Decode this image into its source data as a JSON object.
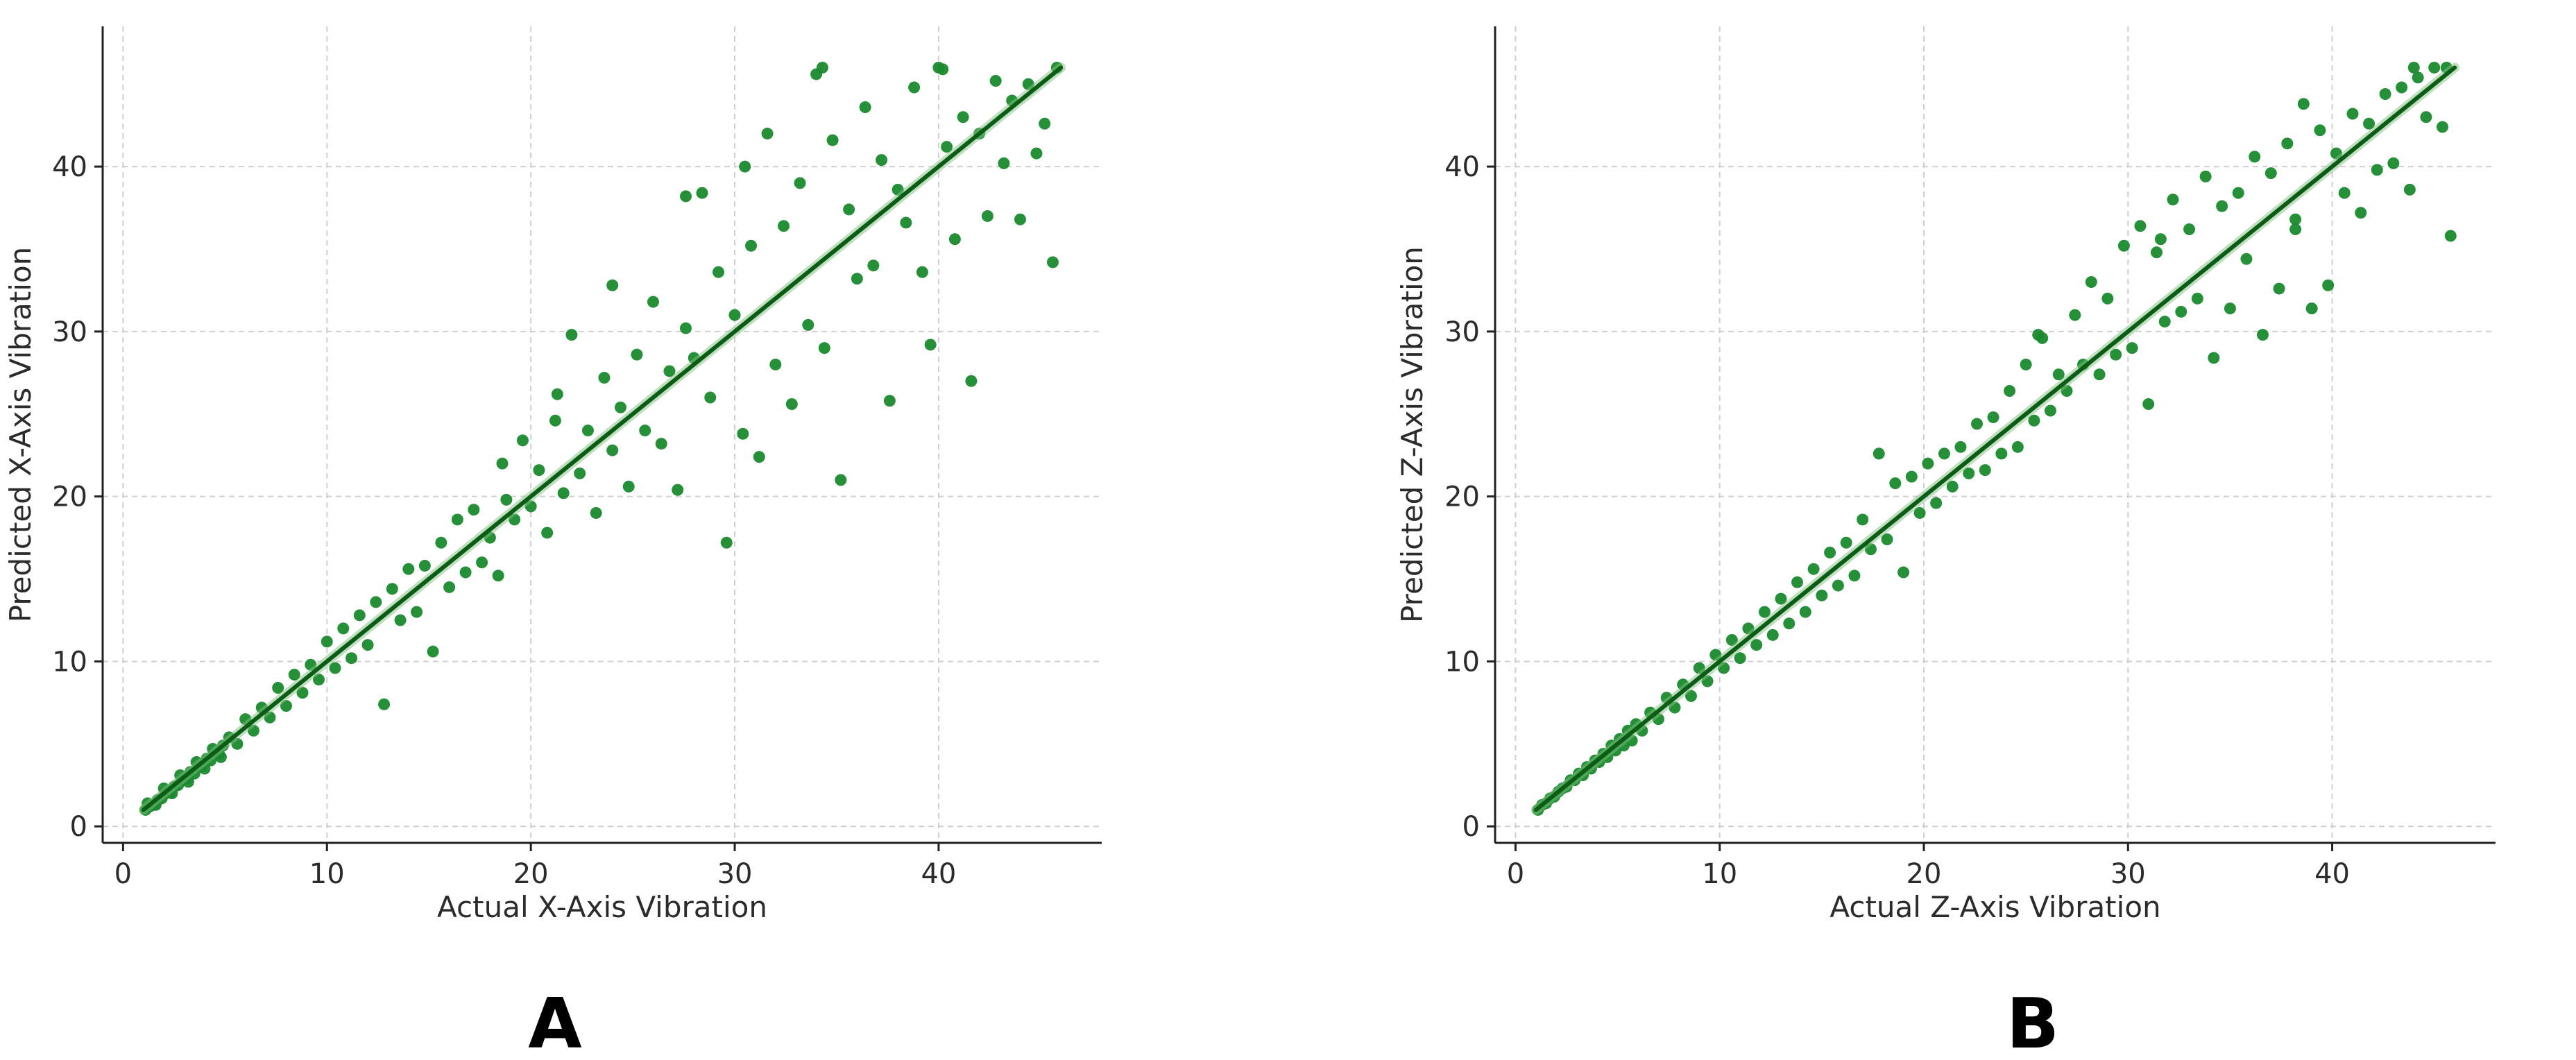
{
  "chart_data": [
    {
      "type": "scatter",
      "panel_label": "A",
      "xlabel": "Actual X-Axis Vibration",
      "ylabel": "Predicted X-Axis Vibration",
      "xlim": [
        -1,
        48
      ],
      "ylim": [
        -1,
        48.5
      ],
      "xticks": [
        0,
        10,
        20,
        30,
        40
      ],
      "yticks": [
        0,
        10,
        20,
        30,
        40
      ],
      "grid": true,
      "marker_color": "#1a8a2e",
      "line_color": "#0b5d16",
      "fit_line": [
        [
          1,
          1
        ],
        [
          46,
          46
        ]
      ],
      "points": [
        [
          1.1,
          1.0
        ],
        [
          1.3,
          1.2
        ],
        [
          1.5,
          1.3
        ],
        [
          1.7,
          1.6
        ],
        [
          1.9,
          1.7
        ],
        [
          2.1,
          2.0
        ],
        [
          2.3,
          2.1
        ],
        [
          2.5,
          2.4
        ],
        [
          2.7,
          2.5
        ],
        [
          2.9,
          2.8
        ],
        [
          3.1,
          2.9
        ],
        [
          3.3,
          3.3
        ],
        [
          3.5,
          3.2
        ],
        [
          3.7,
          3.6
        ],
        [
          3.9,
          3.7
        ],
        [
          4.1,
          4.1
        ],
        [
          4.3,
          4.0
        ],
        [
          4.5,
          4.5
        ],
        [
          4.7,
          4.4
        ],
        [
          4.9,
          4.9
        ],
        [
          1.2,
          1.4
        ],
        [
          1.6,
          1.3
        ],
        [
          2.0,
          2.3
        ],
        [
          2.4,
          2.0
        ],
        [
          2.8,
          3.1
        ],
        [
          3.2,
          2.7
        ],
        [
          3.6,
          3.9
        ],
        [
          4.0,
          3.5
        ],
        [
          4.4,
          4.7
        ],
        [
          4.8,
          4.2
        ],
        [
          5.2,
          5.4
        ],
        [
          5.6,
          5.0
        ],
        [
          6.0,
          6.5
        ],
        [
          6.4,
          5.8
        ],
        [
          6.8,
          7.2
        ],
        [
          7.2,
          6.6
        ],
        [
          7.6,
          8.4
        ],
        [
          8.0,
          7.3
        ],
        [
          8.4,
          9.2
        ],
        [
          8.8,
          8.1
        ],
        [
          9.2,
          9.8
        ],
        [
          9.6,
          8.9
        ],
        [
          10.0,
          11.2
        ],
        [
          10.4,
          9.6
        ],
        [
          10.8,
          12.0
        ],
        [
          11.2,
          10.2
        ],
        [
          11.6,
          12.8
        ],
        [
          12.0,
          11.0
        ],
        [
          12.4,
          13.6
        ],
        [
          12.8,
          7.4
        ],
        [
          13.2,
          14.4
        ],
        [
          13.6,
          12.5
        ],
        [
          14.0,
          15.6
        ],
        [
          14.4,
          13.0
        ],
        [
          14.8,
          15.8
        ],
        [
          15.2,
          10.6
        ],
        [
          15.6,
          17.2
        ],
        [
          16.0,
          14.5
        ],
        [
          16.4,
          18.6
        ],
        [
          16.8,
          15.4
        ],
        [
          17.2,
          19.2
        ],
        [
          17.6,
          16.0
        ],
        [
          18.0,
          17.5
        ],
        [
          18.4,
          15.2
        ],
        [
          18.8,
          19.8
        ],
        [
          19.2,
          18.6
        ],
        [
          19.6,
          23.4
        ],
        [
          20.0,
          19.4
        ],
        [
          20.4,
          21.6
        ],
        [
          20.8,
          17.8
        ],
        [
          21.2,
          24.6
        ],
        [
          21.6,
          20.2
        ],
        [
          22.0,
          29.8
        ],
        [
          22.4,
          21.4
        ],
        [
          22.8,
          24.0
        ],
        [
          23.2,
          19.0
        ],
        [
          23.6,
          27.2
        ],
        [
          24.0,
          22.8
        ],
        [
          24.4,
          25.4
        ],
        [
          24.8,
          20.6
        ],
        [
          25.2,
          28.6
        ],
        [
          25.6,
          24.0
        ],
        [
          26.0,
          31.8
        ],
        [
          26.4,
          23.2
        ],
        [
          26.8,
          27.6
        ],
        [
          27.2,
          20.4
        ],
        [
          27.6,
          30.2
        ],
        [
          28.0,
          28.4
        ],
        [
          28.4,
          38.4
        ],
        [
          28.8,
          26.0
        ],
        [
          29.2,
          33.6
        ],
        [
          29.6,
          17.2
        ],
        [
          30.0,
          31.0
        ],
        [
          30.4,
          23.8
        ],
        [
          30.8,
          35.2
        ],
        [
          31.2,
          22.4
        ],
        [
          31.6,
          42.0
        ],
        [
          32.0,
          28.0
        ],
        [
          32.4,
          36.4
        ],
        [
          32.8,
          25.6
        ],
        [
          33.2,
          39.0
        ],
        [
          33.6,
          30.4
        ],
        [
          34.0,
          45.6
        ],
        [
          34.4,
          29.0
        ],
        [
          34.8,
          41.6
        ],
        [
          35.2,
          21.0
        ],
        [
          35.6,
          37.4
        ],
        [
          36.0,
          33.2
        ],
        [
          36.4,
          43.6
        ],
        [
          36.8,
          34.0
        ],
        [
          37.2,
          40.4
        ],
        [
          37.6,
          25.8
        ],
        [
          38.0,
          38.6
        ],
        [
          38.4,
          36.6
        ],
        [
          38.8,
          44.8
        ],
        [
          39.2,
          33.6
        ],
        [
          39.6,
          29.2
        ],
        [
          40.0,
          46.0
        ],
        [
          40.4,
          41.2
        ],
        [
          40.8,
          35.6
        ],
        [
          41.2,
          43.0
        ],
        [
          41.6,
          27.0
        ],
        [
          42.0,
          42.0
        ],
        [
          42.4,
          37.0
        ],
        [
          42.8,
          45.2
        ],
        [
          43.2,
          40.2
        ],
        [
          43.6,
          44.0
        ],
        [
          44.0,
          36.8
        ],
        [
          44.4,
          45.0
        ],
        [
          44.8,
          40.8
        ],
        [
          45.2,
          42.6
        ],
        [
          45.6,
          34.2
        ],
        [
          45.8,
          46.0
        ],
        [
          34.3,
          46.0
        ],
        [
          40.2,
          45.9
        ],
        [
          30.5,
          40.0
        ],
        [
          27.6,
          38.2
        ],
        [
          24.0,
          32.8
        ],
        [
          18.6,
          22.0
        ],
        [
          21.3,
          26.2
        ]
      ]
    },
    {
      "type": "scatter",
      "panel_label": "B",
      "xlabel": "Actual Z-Axis Vibration",
      "ylabel": "Predicted Z-Axis Vibration",
      "xlim": [
        -1,
        48
      ],
      "ylim": [
        -1,
        48.5
      ],
      "xticks": [
        0,
        10,
        20,
        30,
        40
      ],
      "yticks": [
        0,
        10,
        20,
        30,
        40
      ],
      "grid": true,
      "marker_color": "#1a8a2e",
      "line_color": "#0b5d16",
      "fit_line": [
        [
          1,
          1
        ],
        [
          46,
          46
        ]
      ],
      "points": [
        [
          1.1,
          1.0
        ],
        [
          1.3,
          1.3
        ],
        [
          1.5,
          1.4
        ],
        [
          1.7,
          1.7
        ],
        [
          1.9,
          1.8
        ],
        [
          2.1,
          2.1
        ],
        [
          2.3,
          2.3
        ],
        [
          2.5,
          2.4
        ],
        [
          2.7,
          2.8
        ],
        [
          2.9,
          2.8
        ],
        [
          3.1,
          3.2
        ],
        [
          3.3,
          3.1
        ],
        [
          3.5,
          3.6
        ],
        [
          3.7,
          3.5
        ],
        [
          3.9,
          4.0
        ],
        [
          4.1,
          3.9
        ],
        [
          4.3,
          4.4
        ],
        [
          4.5,
          4.2
        ],
        [
          4.7,
          4.9
        ],
        [
          4.9,
          4.6
        ],
        [
          5.1,
          5.3
        ],
        [
          5.3,
          4.9
        ],
        [
          5.5,
          5.8
        ],
        [
          5.7,
          5.2
        ],
        [
          5.9,
          6.2
        ],
        [
          6.2,
          5.8
        ],
        [
          6.6,
          6.9
        ],
        [
          7.0,
          6.5
        ],
        [
          7.4,
          7.8
        ],
        [
          7.8,
          7.2
        ],
        [
          8.2,
          8.6
        ],
        [
          8.6,
          7.9
        ],
        [
          9.0,
          9.6
        ],
        [
          9.4,
          8.8
        ],
        [
          9.8,
          10.4
        ],
        [
          10.2,
          9.6
        ],
        [
          10.6,
          11.3
        ],
        [
          11.0,
          10.2
        ],
        [
          11.4,
          12.0
        ],
        [
          11.8,
          11.0
        ],
        [
          12.2,
          13.0
        ],
        [
          12.6,
          11.6
        ],
        [
          13.0,
          13.8
        ],
        [
          13.4,
          12.3
        ],
        [
          13.8,
          14.8
        ],
        [
          14.2,
          13.0
        ],
        [
          14.6,
          15.6
        ],
        [
          15.0,
          14.0
        ],
        [
          15.4,
          16.6
        ],
        [
          15.8,
          14.6
        ],
        [
          16.2,
          17.2
        ],
        [
          16.6,
          15.2
        ],
        [
          17.0,
          18.6
        ],
        [
          17.4,
          16.8
        ],
        [
          17.8,
          22.6
        ],
        [
          18.2,
          17.4
        ],
        [
          18.6,
          20.8
        ],
        [
          19.0,
          15.4
        ],
        [
          19.4,
          21.2
        ],
        [
          19.8,
          19.0
        ],
        [
          20.2,
          22.0
        ],
        [
          20.6,
          19.6
        ],
        [
          21.0,
          22.6
        ],
        [
          21.4,
          20.6
        ],
        [
          21.8,
          23.0
        ],
        [
          22.2,
          21.4
        ],
        [
          22.6,
          24.4
        ],
        [
          23.0,
          21.6
        ],
        [
          23.4,
          24.8
        ],
        [
          23.8,
          22.6
        ],
        [
          24.2,
          26.4
        ],
        [
          24.6,
          23.0
        ],
        [
          25.0,
          28.0
        ],
        [
          25.4,
          24.6
        ],
        [
          25.8,
          29.6
        ],
        [
          26.2,
          25.2
        ],
        [
          26.6,
          27.4
        ],
        [
          27.0,
          26.4
        ],
        [
          27.4,
          31.0
        ],
        [
          27.8,
          28.0
        ],
        [
          28.2,
          33.0
        ],
        [
          28.6,
          27.4
        ],
        [
          29.0,
          32.0
        ],
        [
          29.4,
          28.6
        ],
        [
          29.8,
          35.2
        ],
        [
          30.2,
          29.0
        ],
        [
          30.6,
          36.4
        ],
        [
          31.0,
          25.6
        ],
        [
          31.4,
          34.8
        ],
        [
          31.8,
          30.6
        ],
        [
          32.2,
          38.0
        ],
        [
          32.6,
          31.2
        ],
        [
          33.0,
          36.2
        ],
        [
          33.4,
          32.0
        ],
        [
          33.8,
          39.4
        ],
        [
          34.2,
          28.4
        ],
        [
          34.6,
          37.6
        ],
        [
          35.0,
          31.4
        ],
        [
          35.4,
          38.4
        ],
        [
          35.8,
          34.4
        ],
        [
          36.2,
          40.6
        ],
        [
          36.6,
          29.8
        ],
        [
          37.0,
          39.6
        ],
        [
          37.4,
          32.6
        ],
        [
          37.8,
          41.4
        ],
        [
          38.2,
          36.2
        ],
        [
          38.6,
          43.8
        ],
        [
          39.0,
          31.4
        ],
        [
          39.4,
          42.2
        ],
        [
          39.8,
          32.8
        ],
        [
          40.2,
          40.8
        ],
        [
          40.6,
          38.4
        ],
        [
          41.0,
          43.2
        ],
        [
          41.4,
          37.2
        ],
        [
          41.8,
          42.6
        ],
        [
          42.2,
          39.8
        ],
        [
          42.6,
          44.4
        ],
        [
          43.0,
          40.2
        ],
        [
          43.4,
          44.8
        ],
        [
          43.8,
          38.6
        ],
        [
          44.2,
          45.4
        ],
        [
          44.6,
          43.0
        ],
        [
          45.0,
          46.0
        ],
        [
          45.4,
          42.4
        ],
        [
          45.8,
          35.8
        ],
        [
          45.6,
          46.0
        ],
        [
          44.0,
          46.0
        ],
        [
          38.2,
          36.8
        ],
        [
          31.6,
          35.6
        ],
        [
          25.6,
          29.8
        ]
      ]
    }
  ]
}
